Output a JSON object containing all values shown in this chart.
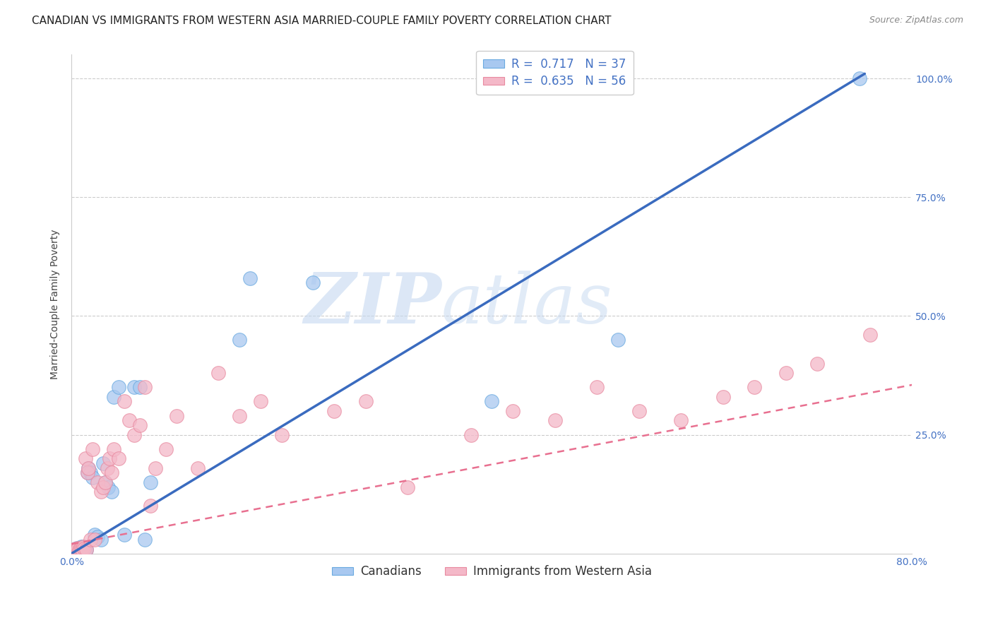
{
  "title": "CANADIAN VS IMMIGRANTS FROM WESTERN ASIA MARRIED-COUPLE FAMILY POVERTY CORRELATION CHART",
  "source": "Source: ZipAtlas.com",
  "ylabel": "Married-Couple Family Poverty",
  "xlim": [
    0.0,
    0.8
  ],
  "ylim": [
    0.0,
    1.05
  ],
  "background_color": "#ffffff",
  "watermark_zip": "ZIP",
  "watermark_atlas": "atlas",
  "canadians_color": "#a8c8f0",
  "canadians_edge": "#6aaae0",
  "immigrants_color": "#f4b8c8",
  "immigrants_edge": "#e88aa0",
  "canadians_R": 0.717,
  "canadians_N": 37,
  "immigrants_R": 0.635,
  "immigrants_N": 56,
  "legend_label1": "Canadians",
  "legend_label2": "Immigrants from Western Asia",
  "blue_line_x": [
    0.0,
    0.755
  ],
  "blue_line_y": [
    0.0,
    1.01
  ],
  "pink_line_x": [
    0.0,
    0.8
  ],
  "pink_line_y": [
    0.02,
    0.355
  ],
  "blue_line_color": "#3a6bbf",
  "pink_line_color": "#e87090",
  "canadians_x": [
    0.002,
    0.003,
    0.004,
    0.005,
    0.006,
    0.007,
    0.008,
    0.009,
    0.01,
    0.011,
    0.012,
    0.013,
    0.014,
    0.015,
    0.016,
    0.018,
    0.02,
    0.022,
    0.025,
    0.028,
    0.03,
    0.032,
    0.035,
    0.038,
    0.04,
    0.045,
    0.05,
    0.06,
    0.065,
    0.07,
    0.075,
    0.16,
    0.23,
    0.4,
    0.52,
    0.75,
    0.17
  ],
  "canadians_y": [
    0.005,
    0.008,
    0.01,
    0.012,
    0.008,
    0.01,
    0.012,
    0.015,
    0.01,
    0.015,
    0.012,
    0.01,
    0.008,
    0.17,
    0.18,
    0.17,
    0.16,
    0.04,
    0.035,
    0.03,
    0.19,
    0.15,
    0.14,
    0.13,
    0.33,
    0.35,
    0.04,
    0.35,
    0.35,
    0.03,
    0.15,
    0.45,
    0.57,
    0.32,
    0.45,
    1.0,
    0.58
  ],
  "immigrants_x": [
    0.001,
    0.002,
    0.003,
    0.004,
    0.005,
    0.006,
    0.007,
    0.008,
    0.009,
    0.01,
    0.011,
    0.012,
    0.013,
    0.014,
    0.015,
    0.016,
    0.018,
    0.02,
    0.022,
    0.025,
    0.028,
    0.03,
    0.032,
    0.034,
    0.036,
    0.038,
    0.04,
    0.045,
    0.05,
    0.055,
    0.06,
    0.065,
    0.07,
    0.075,
    0.08,
    0.09,
    0.1,
    0.12,
    0.14,
    0.16,
    0.18,
    0.2,
    0.25,
    0.28,
    0.32,
    0.38,
    0.42,
    0.46,
    0.5,
    0.54,
    0.58,
    0.62,
    0.65,
    0.68,
    0.71,
    0.76
  ],
  "immigrants_y": [
    0.005,
    0.008,
    0.005,
    0.01,
    0.008,
    0.012,
    0.006,
    0.01,
    0.012,
    0.008,
    0.015,
    0.01,
    0.2,
    0.008,
    0.17,
    0.18,
    0.03,
    0.22,
    0.03,
    0.15,
    0.13,
    0.14,
    0.15,
    0.18,
    0.2,
    0.17,
    0.22,
    0.2,
    0.32,
    0.28,
    0.25,
    0.27,
    0.35,
    0.1,
    0.18,
    0.22,
    0.29,
    0.18,
    0.38,
    0.29,
    0.32,
    0.25,
    0.3,
    0.32,
    0.14,
    0.25,
    0.3,
    0.28,
    0.35,
    0.3,
    0.28,
    0.33,
    0.35,
    0.38,
    0.4,
    0.46
  ],
  "tick_fontsize": 10,
  "axis_label_fontsize": 10,
  "title_fontsize": 11,
  "legend_fontsize": 12
}
